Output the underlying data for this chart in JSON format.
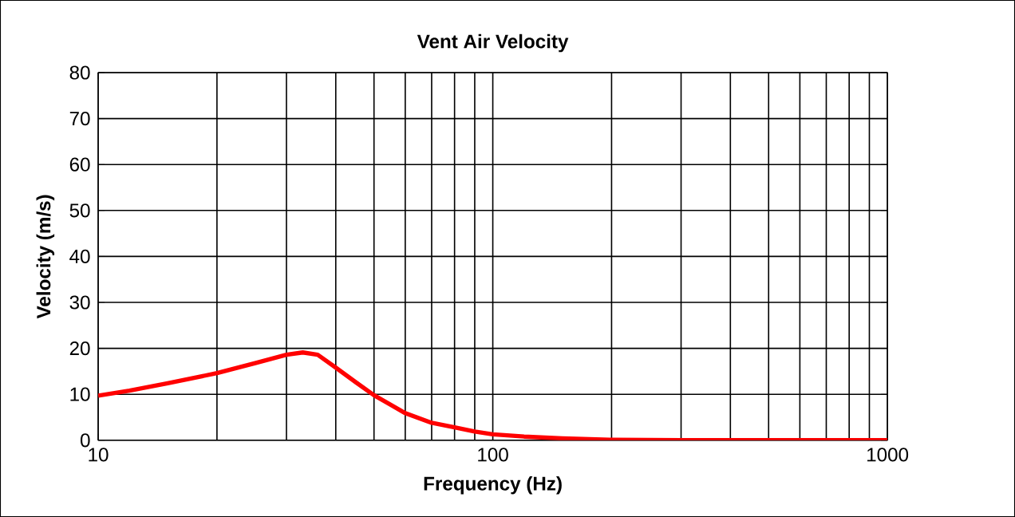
{
  "chart_data": {
    "type": "line",
    "title": "Vent Air Velocity",
    "xlabel": "Frequency (Hz)",
    "ylabel": "Velocity (m/s)",
    "log": "x",
    "grid": true,
    "marker": "none",
    "line_style": "solid",
    "xlim": [
      10,
      1000
    ],
    "xticks": [
      10,
      100,
      1000
    ],
    "ylim": [
      0,
      80
    ],
    "yticks": [
      0,
      10,
      20,
      30,
      40,
      50,
      60,
      70,
      80
    ],
    "series": [
      {
        "color": "#ff0000",
        "x": [
          10,
          12,
          15,
          20,
          25,
          30,
          33,
          36,
          40,
          45,
          50,
          60,
          70,
          80,
          90,
          100,
          120,
          150,
          200,
          300,
          500,
          1000
        ],
        "values": [
          9.7,
          10.8,
          12.4,
          14.6,
          16.8,
          18.6,
          19.1,
          18.6,
          15.8,
          12.6,
          9.8,
          5.9,
          3.8,
          2.8,
          1.9,
          1.3,
          0.8,
          0.4,
          0.1,
          0,
          0,
          0
        ]
      }
    ]
  }
}
